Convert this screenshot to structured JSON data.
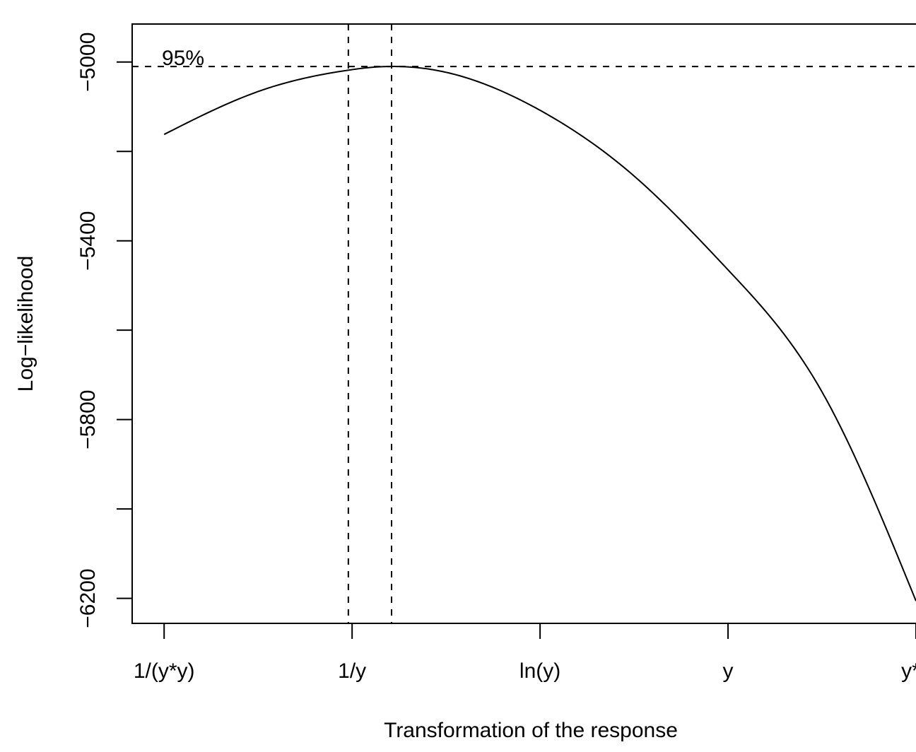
{
  "chart_data": {
    "type": "line",
    "title": "",
    "xlabel": "Transformation of the response",
    "ylabel": "Log−likelihood",
    "xlim": [
      -2.17,
      2.0
    ],
    "ylim": [
      -6256,
      -4915
    ],
    "x_ticks": [
      {
        "value": -2,
        "label": "1/(y*y)"
      },
      {
        "value": -1,
        "label": "1/y"
      },
      {
        "value": 0,
        "label": "ln(y)"
      },
      {
        "value": 1,
        "label": "y"
      },
      {
        "value": 2,
        "label": "y*y"
      }
    ],
    "y_ticks": [
      {
        "value": -5000,
        "label": "−5000"
      },
      {
        "value": -5200,
        "label": ""
      },
      {
        "value": -5400,
        "label": "−5400"
      },
      {
        "value": -5600,
        "label": ""
      },
      {
        "value": -5800,
        "label": "−5800"
      },
      {
        "value": -6000,
        "label": ""
      },
      {
        "value": -6200,
        "label": "−6200"
      }
    ],
    "series": [
      {
        "color": "#000000",
        "x": [
          -2.0,
          -1.5,
          -1.0,
          -0.9,
          -0.8,
          -0.7,
          -0.5,
          0.0,
          0.5,
          1.0,
          1.5,
          2.0
        ],
        "y": [
          -5162,
          -5066,
          -5017,
          -5012,
          -5010,
          -5011,
          -5023,
          -5108,
          -5255,
          -5465,
          -5738,
          -6206
        ]
      }
    ],
    "reference_lines": {
      "horizontal_y": -5010,
      "horizontal_label": "95%",
      "vertical_x": [
        -1.02,
        -0.79
      ]
    },
    "grid": false,
    "legend": "none"
  }
}
